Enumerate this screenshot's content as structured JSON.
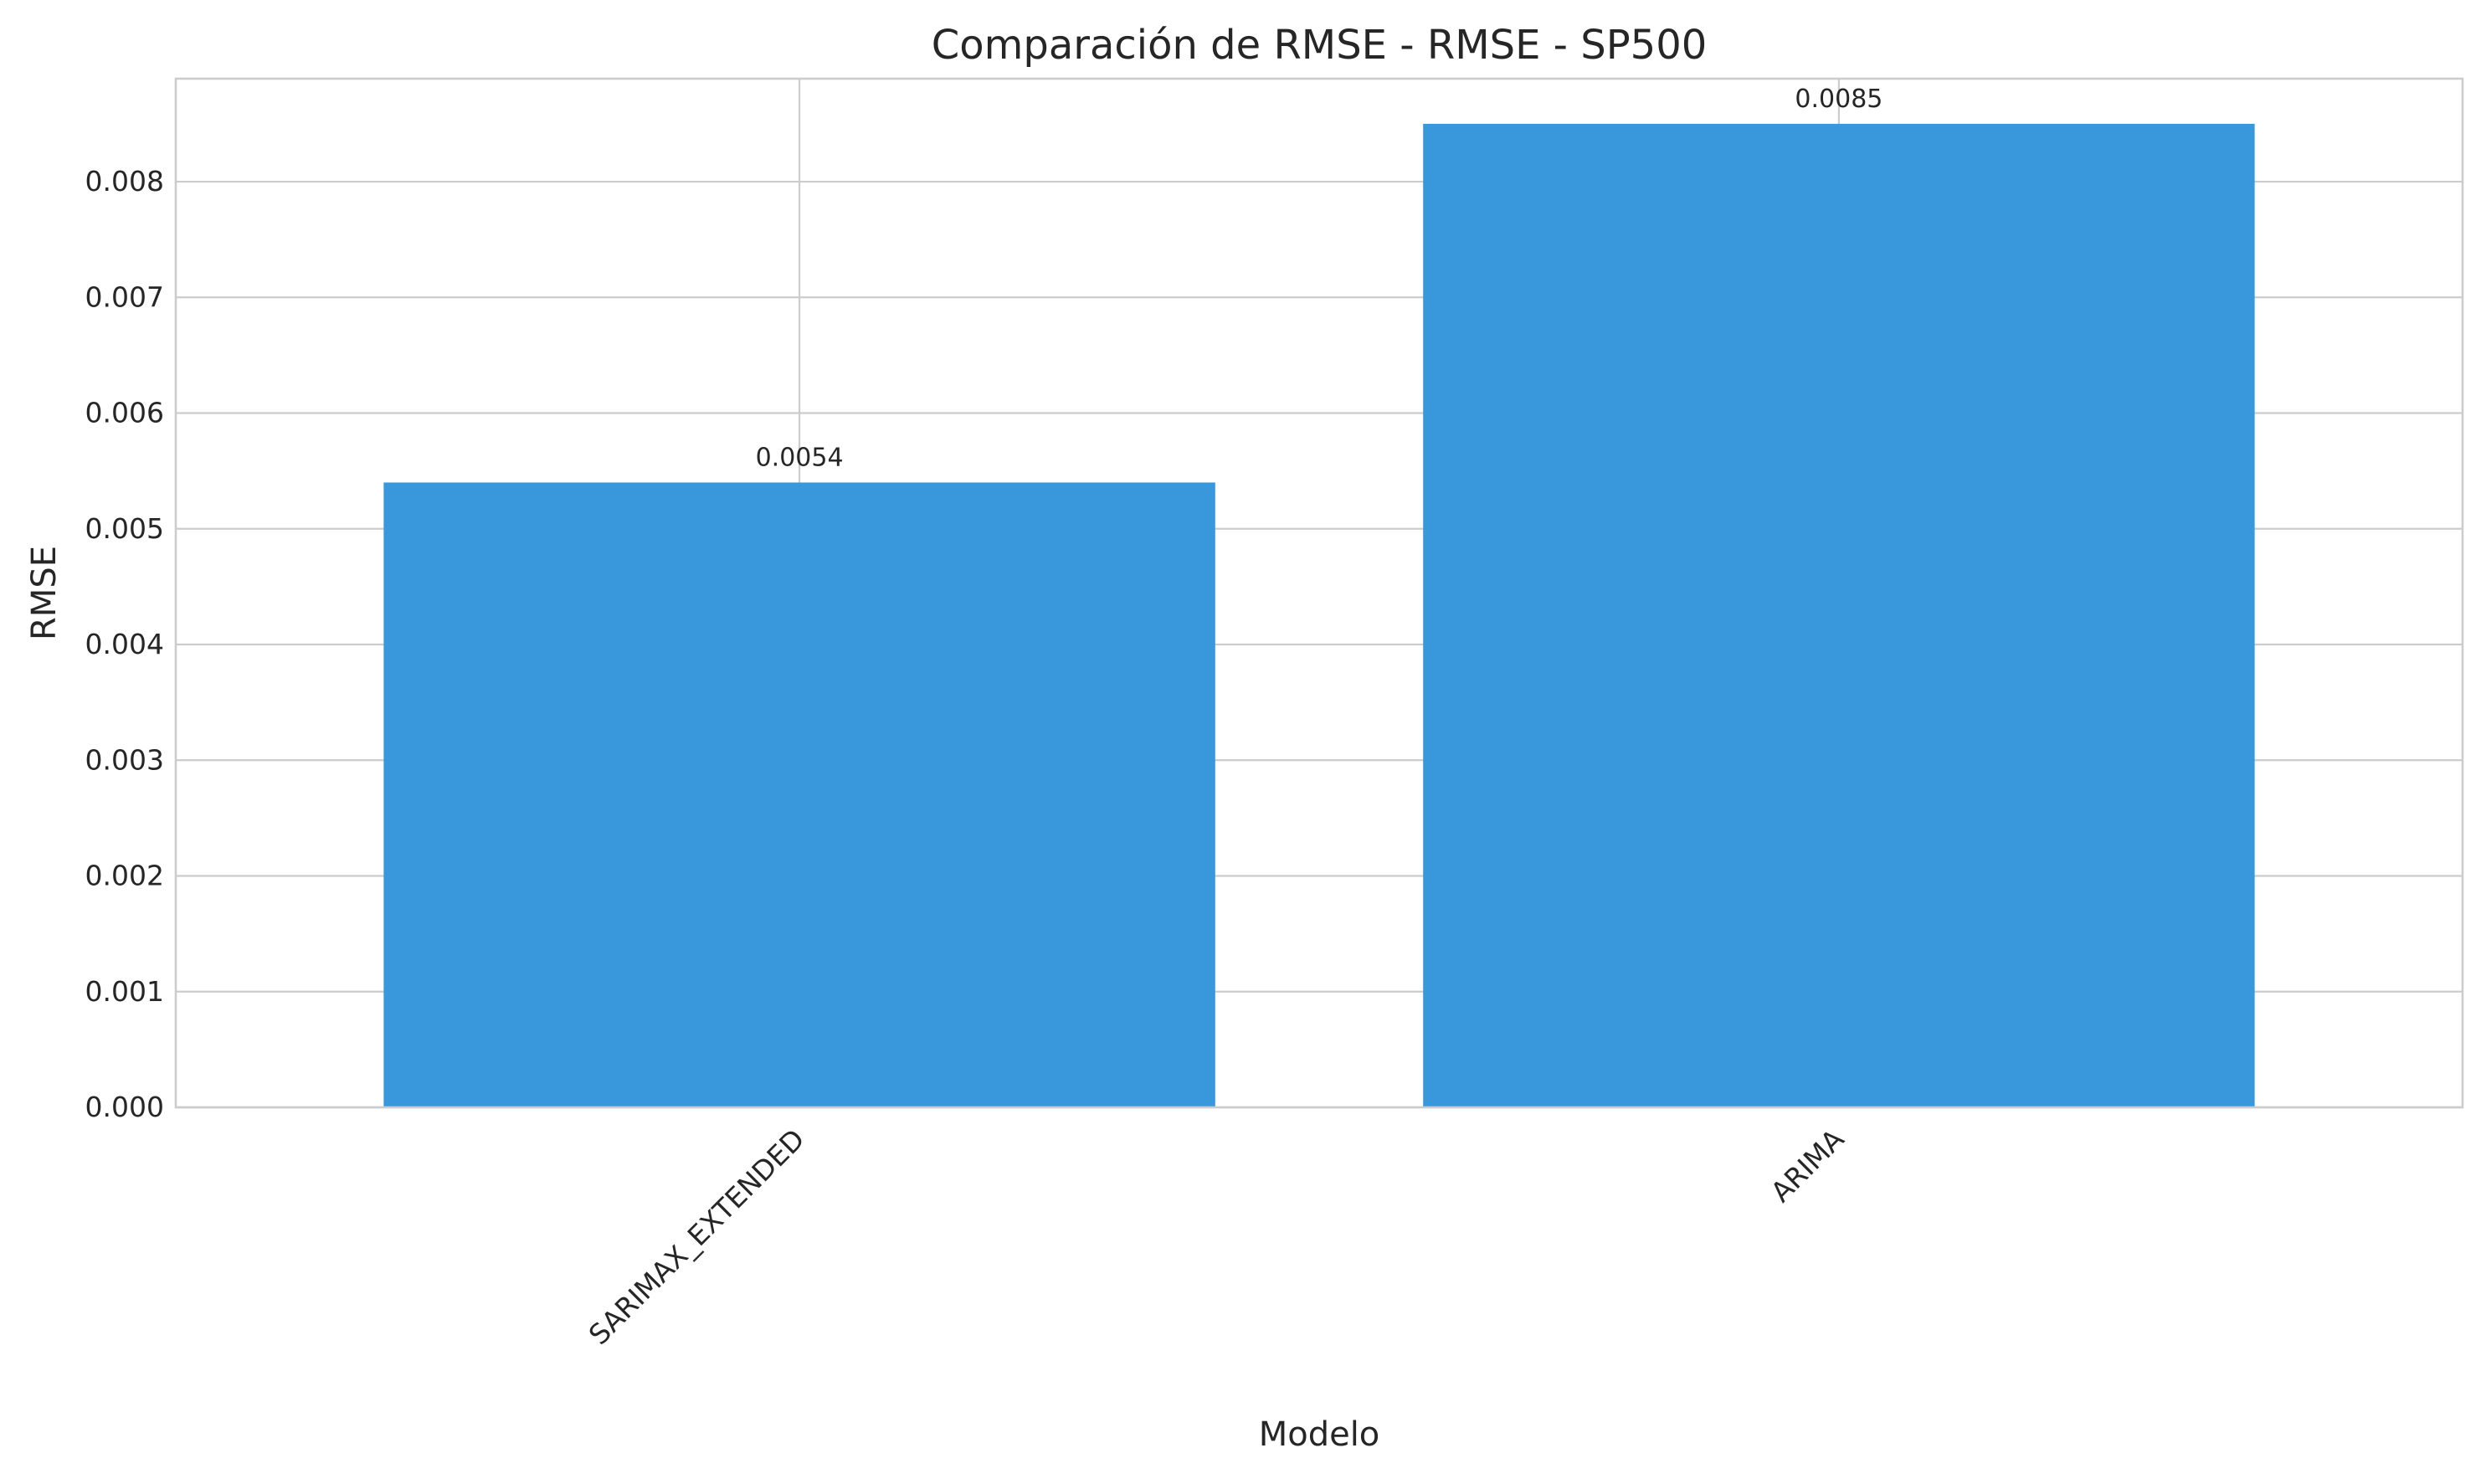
{
  "chart_data": {
    "type": "bar",
    "title": "Comparación de RMSE - RMSE - SP500",
    "xlabel": "Modelo",
    "ylabel": "RMSE",
    "categories": [
      "SARIMAX_EXTENDED",
      "ARIMA"
    ],
    "values": [
      0.0054,
      0.0085
    ],
    "data_labels": [
      "0.0054",
      "0.0085"
    ],
    "ylim": [
      0,
      0.00889
    ],
    "yticks": [
      0.0,
      0.001,
      0.002,
      0.003,
      0.004,
      0.005,
      0.006,
      0.007,
      0.008
    ],
    "ytick_labels": [
      "0.000",
      "0.001",
      "0.002",
      "0.003",
      "0.004",
      "0.005",
      "0.006",
      "0.007",
      "0.008"
    ],
    "xtick_rotation": 45,
    "grid": true,
    "bar_color": "#3898db",
    "grid_color": "#cccccc"
  }
}
